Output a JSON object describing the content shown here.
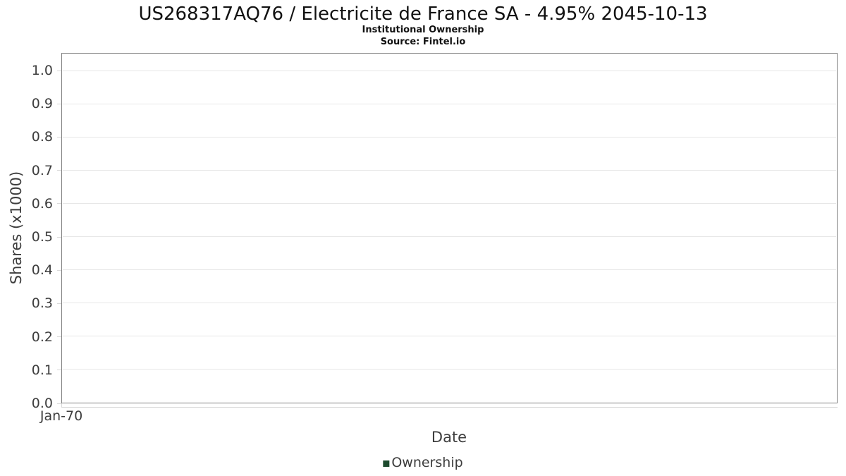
{
  "chart_data": {
    "type": "line",
    "title": "US268317AQ76 / Electricite de France SA - 4.95% 2045-10-13",
    "subtitle": "Institutional Ownership",
    "source": "Source: Fintel.io",
    "xlabel": "Date",
    "ylabel": "Shares (x1000)",
    "x_tick_labels": [
      "Jan-70"
    ],
    "y_tick_labels": [
      "0.0",
      "0.1",
      "0.2",
      "0.3",
      "0.4",
      "0.5",
      "0.6",
      "0.7",
      "0.8",
      "0.9",
      "1.0"
    ],
    "y_tick_values": [
      0.0,
      0.1,
      0.2,
      0.3,
      0.4,
      0.5,
      0.6,
      0.7,
      0.8,
      0.9,
      1.0
    ],
    "ylim": [
      0.0,
      1.053
    ],
    "grid": true,
    "legend_position": "bottom-center",
    "series": [
      {
        "name": "Ownership",
        "color": "#1d4a2d",
        "x": [],
        "values": []
      }
    ]
  },
  "legend": {
    "items": [
      {
        "label": "Ownership",
        "color": "#1d4a2d"
      }
    ]
  },
  "colors": {
    "background": "#ffffff",
    "plot_border": "#808080",
    "gridline": "#e7e7e7",
    "tick_mark": "#d9d9d9",
    "axis_text": "#3d3d3d",
    "title_text": "#111111",
    "legend_marker": "#1d4a2d"
  }
}
